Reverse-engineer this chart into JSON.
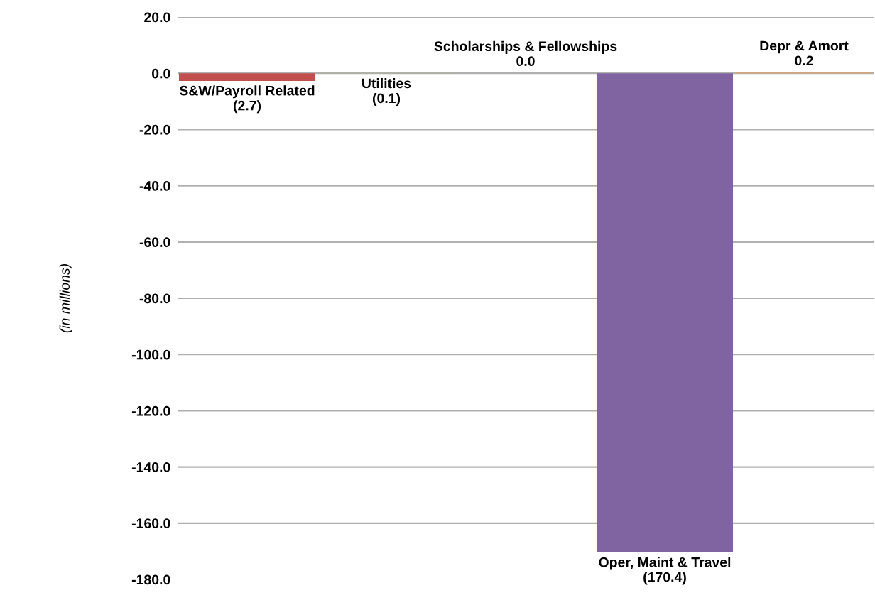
{
  "chart_data": {
    "type": "bar",
    "ylabel": "(in millions)",
    "categories": [
      "S&W/Payroll Related",
      "Utilities",
      "Scholarships & Fellowships",
      "Oper, Maint & Travel",
      "Depr & Amort"
    ],
    "values": [
      -2.7,
      -0.1,
      0.0,
      -170.4,
      0.2
    ],
    "value_labels": [
      "(2.7)",
      "(0.1)",
      "0.0",
      "(170.4)",
      "0.2"
    ],
    "colors": [
      "#c0504d",
      "#9bbb59",
      "#4f81bd",
      "#8064a2",
      "#f79646"
    ],
    "ylim": [
      -180,
      20
    ],
    "yticks": [
      {
        "value": 20,
        "label": "20.0"
      },
      {
        "value": 0,
        "label": "0.0"
      },
      {
        "value": -20,
        "label": "-20.0"
      },
      {
        "value": -40,
        "label": "-40.0"
      },
      {
        "value": -60,
        "label": "-60.0"
      },
      {
        "value": -80,
        "label": "-80.0"
      },
      {
        "value": -100,
        "label": "-100.0"
      },
      {
        "value": -120,
        "label": "-120.0"
      },
      {
        "value": -140,
        "label": "-140.0"
      },
      {
        "value": -160,
        "label": "-160.0"
      },
      {
        "value": -180,
        "label": "-180.0"
      }
    ],
    "grid": "y",
    "legend": false
  }
}
